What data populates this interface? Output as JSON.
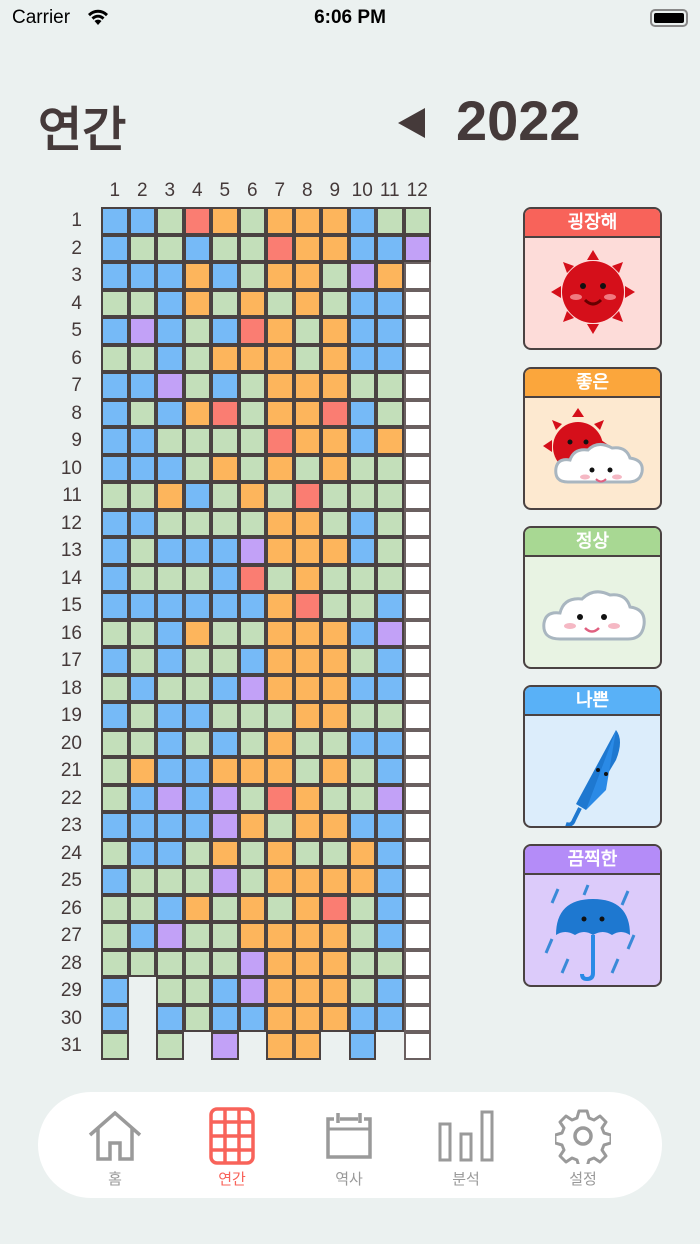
{
  "status_bar": {
    "carrier": "Carrier",
    "time": "6:06 PM"
  },
  "header": {
    "title": "연간",
    "year": "2022"
  },
  "months": [
    "1",
    "2",
    "3",
    "4",
    "5",
    "6",
    "7",
    "8",
    "9",
    "10",
    "11",
    "12"
  ],
  "days": [
    "1",
    "2",
    "3",
    "4",
    "5",
    "6",
    "7",
    "8",
    "9",
    "10",
    "11",
    "12",
    "13",
    "14",
    "15",
    "16",
    "17",
    "18",
    "19",
    "20",
    "21",
    "22",
    "23",
    "24",
    "25",
    "26",
    "27",
    "28",
    "29",
    "30",
    "31"
  ],
  "mood_codes": {
    "R": "great",
    "O": "good",
    "G": "normal",
    "B": "bad",
    "P": "terrible",
    "W": "unrecorded",
    "_": "none"
  },
  "colors": {
    "great": "#fa7d72",
    "good": "#fdb55c",
    "normal": "#c3dfba",
    "bad": "#76baf7",
    "terrible": "#c2a1f7",
    "unrecorded": "#ffffff"
  },
  "grid_rows": [
    "BBGROGOOOBGG",
    "BGGBGGROOBBP",
    "BBBOBGOOGPOW",
    "GGBOGOGOGBBW",
    "BPBGBROGOBBW",
    "GGBGOOOGOBBW",
    "BBPGBGOOOGGW",
    "BGBORGOORBGW",
    "BBGGGGROOBOW",
    "BBBGOGOGOGGW",
    "GGOBGOGRGGGW",
    "BBGGGGOOGBGW",
    "BGBBBPOOOBGW",
    "BGGGBRGOGGGW",
    "BBBBBBORGGBW",
    "GGBOGGOOOBPW",
    "BGBGGBOOOGBW",
    "GBGGBPOOOBBW",
    "BGBBGGGOOGGW",
    "GGBGBGOGGBBW",
    "GOBBOOOGOGBW",
    "GBPBPGROGGPW",
    "BBBBPOGOOBBW",
    "GBBGOGOGGOBW",
    "BGGGPGOOOOBW",
    "GGBOGOGORGBW",
    "GBPGGOOOOGBW",
    "GGGGGPOOOGGW",
    "B_GGBPOOOGBW",
    "B_BGBBOOOBBW",
    "G_G_P_OO_B_W"
  ],
  "legend": [
    {
      "mood": "great",
      "label": "굉장해",
      "icon": "sun-icon",
      "header": "#f8635a",
      "body": "#fddcd9"
    },
    {
      "mood": "good",
      "label": "좋은",
      "icon": "sun-cloud-icon",
      "header": "#fba63c",
      "body": "#fde9d0"
    },
    {
      "mood": "normal",
      "label": "정상",
      "icon": "cloud-icon",
      "header": "#a8d893",
      "body": "#e8f3e3"
    },
    {
      "mood": "bad",
      "label": "나쁜",
      "icon": "closed-umbrella-icon",
      "header": "#59b1f7",
      "body": "#dcedfb"
    },
    {
      "mood": "terrible",
      "label": "끔찍한",
      "icon": "umbrella-rain-icon",
      "header": "#b48cf8",
      "body": "#dccbfa"
    }
  ],
  "tabs": [
    {
      "label": "홈",
      "icon": "home-icon",
      "active": false
    },
    {
      "label": "연간",
      "icon": "grid-icon",
      "active": true
    },
    {
      "label": "역사",
      "icon": "calendar-icon",
      "active": false
    },
    {
      "label": "분석",
      "icon": "bar-chart-icon",
      "active": false
    },
    {
      "label": "설정",
      "icon": "gear-icon",
      "active": false
    }
  ],
  "accent": "#f8635a"
}
